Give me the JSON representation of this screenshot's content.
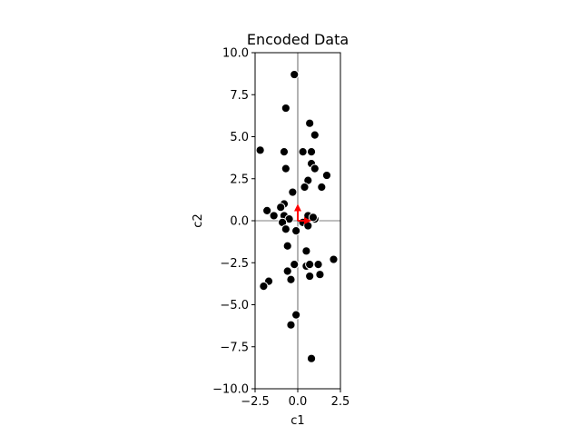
{
  "chart_data": {
    "type": "scatter",
    "title": "Encoded Data",
    "xlabel": "c1",
    "ylabel": "c2",
    "xlim": [
      -2.5,
      2.5
    ],
    "ylim": [
      -10.0,
      10.0
    ],
    "xticks": [
      "−2.5",
      "0.0",
      "2.5"
    ],
    "xtick_values": [
      -2.5,
      0.0,
      2.5
    ],
    "yticks": [
      "−10.0",
      "−7.5",
      "−5.0",
      "−2.5",
      "0.0",
      "2.5",
      "5.0",
      "7.5",
      "10.0"
    ],
    "ytick_values": [
      -10.0,
      -7.5,
      -5.0,
      -2.5,
      0.0,
      2.5,
      5.0,
      7.5,
      10.0
    ],
    "grid": false,
    "zero_lines": true,
    "marker_color": "#000000",
    "marker_edge_color": "#ffffff",
    "arrow_color": "#ff0000",
    "arrows": [
      {
        "x0": 0.0,
        "y0": 0.0,
        "dx": 0.0,
        "dy": 1.0
      },
      {
        "x0": 0.0,
        "y0": 0.0,
        "dx": 0.8,
        "dy": 0.0
      }
    ],
    "series": [
      {
        "points": [
          [
            -0.2,
            8.7
          ],
          [
            -0.7,
            6.7
          ],
          [
            0.7,
            5.8
          ],
          [
            1.0,
            5.1
          ],
          [
            -2.2,
            4.2
          ],
          [
            -0.8,
            4.1
          ],
          [
            0.3,
            4.1
          ],
          [
            0.8,
            4.1
          ],
          [
            0.8,
            3.4
          ],
          [
            1.0,
            3.1
          ],
          [
            -0.7,
            3.1
          ],
          [
            1.7,
            2.7
          ],
          [
            0.6,
            2.4
          ],
          [
            1.4,
            2.0
          ],
          [
            0.4,
            2.0
          ],
          [
            -0.3,
            1.7
          ],
          [
            -0.8,
            1.0
          ],
          [
            -1.0,
            0.8
          ],
          [
            -1.8,
            0.6
          ],
          [
            -1.4,
            0.3
          ],
          [
            -0.8,
            0.3
          ],
          [
            -0.5,
            0.1
          ],
          [
            -0.9,
            -0.1
          ],
          [
            0.6,
            0.3
          ],
          [
            1.0,
            0.1
          ],
          [
            0.9,
            0.2
          ],
          [
            0.3,
            -0.1
          ],
          [
            0.6,
            -0.3
          ],
          [
            -0.7,
            -0.5
          ],
          [
            -0.1,
            -0.6
          ],
          [
            -0.6,
            -1.5
          ],
          [
            0.5,
            -1.8
          ],
          [
            -0.2,
            -2.6
          ],
          [
            0.5,
            -2.7
          ],
          [
            0.7,
            -2.6
          ],
          [
            1.2,
            -2.6
          ],
          [
            2.1,
            -2.3
          ],
          [
            -0.6,
            -3.0
          ],
          [
            1.3,
            -3.2
          ],
          [
            0.7,
            -3.3
          ],
          [
            -0.4,
            -3.5
          ],
          [
            -1.7,
            -3.6
          ],
          [
            -2.0,
            -3.9
          ],
          [
            -0.1,
            -5.6
          ],
          [
            -0.4,
            -6.2
          ],
          [
            0.8,
            -8.2
          ]
        ]
      }
    ]
  }
}
